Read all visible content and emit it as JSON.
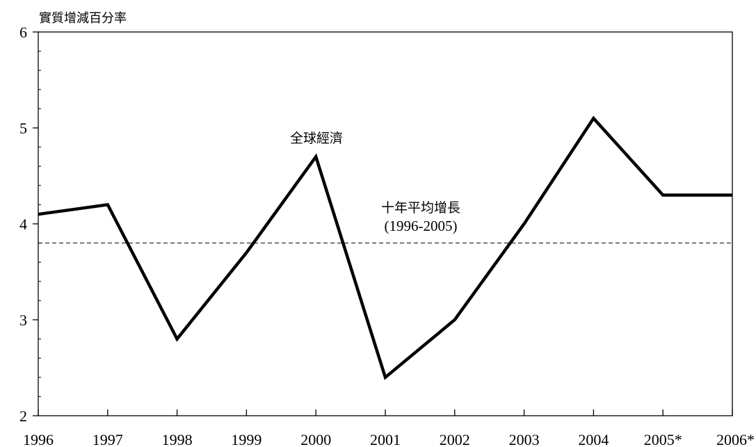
{
  "chart_data": {
    "type": "line",
    "ylabel": "實質增減百分率",
    "xlabel": "",
    "categories": [
      "1996",
      "1997",
      "1998",
      "1999",
      "2000",
      "2001",
      "2002",
      "2003",
      "2004",
      "2005*",
      "2006*"
    ],
    "series": [
      {
        "values": [
          4.1,
          4.2,
          2.8,
          3.7,
          4.7,
          2.4,
          3.0,
          4.0,
          5.1,
          4.3,
          4.3
        ]
      }
    ],
    "ylim": [
      2,
      6
    ],
    "yticks": [
      2,
      3,
      4,
      5,
      6
    ],
    "reference_line": {
      "value": 3.8,
      "label_line1": "十年平均增長",
      "label_line2": "(1996-2005)"
    },
    "annotations": [
      {
        "text": "全球經濟",
        "x": "2000"
      }
    ],
    "colors": {
      "line": "#000000",
      "reference": "#000000"
    },
    "grid": false
  }
}
